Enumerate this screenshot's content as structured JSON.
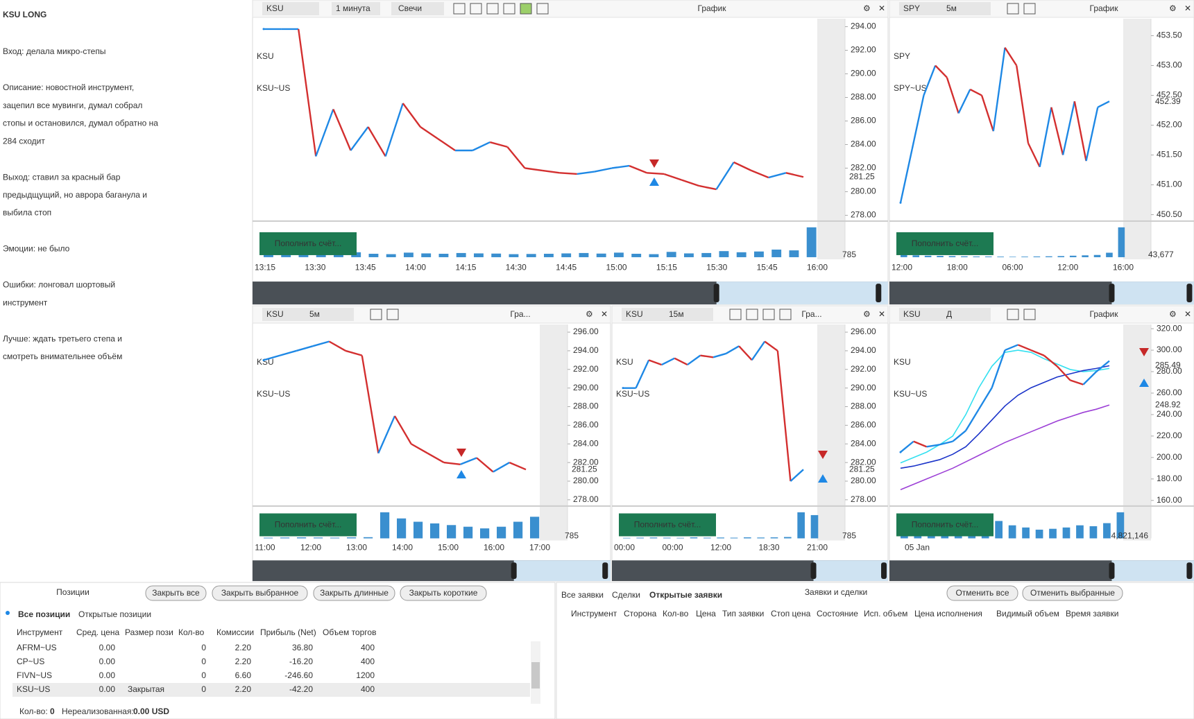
{
  "notes": {
    "title": "KSU LONG",
    "paragraphs": [
      [
        "Вход: делала микро-степы"
      ],
      [
        "Описание: новостной инструмент,",
        "зацепил все мувинги, думал собрал",
        "стопы и остановился, думал обратно на",
        "284 сходит"
      ],
      [
        "Выход: ставил за красный бар",
        "предыдщущий, но аврора баганула и",
        "выбила стоп"
      ],
      [
        "Эмоции: не было"
      ],
      [
        "Ошибки: лонговал шортовый",
        "инструмент"
      ],
      [
        "Лучше: ждать третьего степа и",
        "смотреть внимательнее объём"
      ]
    ]
  },
  "charts": [
    {
      "symbol": "KSU",
      "interval": "1 минута",
      "style": "Свечи",
      "title": "График",
      "watermark": "KSU",
      "watermark_sub": "KSU~US",
      "button": "Пополнить счёт...",
      "ylim": [
        277.8,
        294.5
      ],
      "yticks": [
        {
          "value": 294,
          "label": "294.00"
        },
        {
          "value": 292,
          "label": "292.00"
        },
        {
          "value": 290,
          "label": "290.00"
        },
        {
          "value": 288,
          "label": "288.00"
        },
        {
          "value": 286,
          "label": "286.00"
        },
        {
          "value": 284,
          "label": "284.00"
        },
        {
          "value": 282,
          "label": "282.00"
        },
        {
          "value": 280,
          "label": "280.00"
        },
        {
          "value": 278,
          "label": "278.00"
        }
      ],
      "price_labels": [
        {
          "value": 281.25,
          "label": "281.25",
          "color": "#1e88e5"
        }
      ],
      "volume_label": "785",
      "xticks": [
        "13:15",
        "13:30",
        "13:45",
        "14:00",
        "14:15",
        "14:30",
        "14:45",
        "15:00",
        "15:15",
        "15:30",
        "15:45",
        "16:00"
      ],
      "closes": [
        293.8,
        293.8,
        293.8,
        283,
        287,
        283.5,
        285.5,
        283,
        287.5,
        285.5,
        284.5,
        283.5,
        283.5,
        284.2,
        283.8,
        282,
        281.8,
        281.6,
        281.5,
        281.7,
        282,
        282.2,
        281.6,
        281.5,
        281,
        280.5,
        280.2,
        282.5,
        281.8,
        281.2,
        281.6,
        281.25
      ],
      "volumes": [
        90,
        120,
        150,
        110,
        100,
        130,
        90,
        80,
        120,
        100,
        90,
        110,
        100,
        95,
        80,
        85,
        90,
        100,
        110,
        95,
        120,
        90,
        80,
        140,
        100,
        110,
        160,
        130,
        150,
        200,
        180,
        785
      ]
    },
    {
      "symbol": "SPY",
      "interval": "5м",
      "title": "График",
      "watermark": "SPY",
      "watermark_sub": "SPY~US",
      "button": "Пополнить счёт...",
      "ylim": [
        450.45,
        453.75
      ],
      "yticks": [
        {
          "value": 453.5,
          "label": "453.50"
        },
        {
          "value": 453,
          "label": "453.00"
        },
        {
          "value": 452.5,
          "label": "452.50"
        },
        {
          "value": 452,
          "label": "452.00"
        },
        {
          "value": 451.5,
          "label": "451.50"
        },
        {
          "value": 451,
          "label": "451.00"
        },
        {
          "value": 450.5,
          "label": "450.50"
        }
      ],
      "price_labels": [
        {
          "value": 452.39,
          "label": "452.39",
          "color": "#1e88e5"
        }
      ],
      "volume_label": "43,677",
      "xticks": [
        "12:00",
        "18:00",
        "06:00",
        "12:00",
        "16:00"
      ],
      "closes": [
        450.7,
        451.6,
        452.5,
        453.0,
        452.8,
        452.2,
        452.6,
        452.5,
        451.9,
        453.3,
        453.0,
        451.7,
        451.3,
        452.3,
        451.5,
        452.4,
        451.4,
        452.3,
        452.4
      ],
      "volumes": [
        30,
        25,
        20,
        18,
        15,
        12,
        10,
        10,
        8,
        6,
        8,
        10,
        12,
        15,
        20,
        25,
        30,
        60,
        400
      ]
    },
    {
      "symbol": "KSU",
      "interval": "5м",
      "title": "Гра...",
      "watermark": "KSU",
      "watermark_sub": "KSU~US",
      "button": "Пополнить счёт...",
      "ylim": [
        277.7,
        296.6
      ],
      "yticks": [
        {
          "value": 296,
          "label": "296.00"
        },
        {
          "value": 294,
          "label": "294.00"
        },
        {
          "value": 292,
          "label": "292.00"
        },
        {
          "value": 290,
          "label": "290.00"
        },
        {
          "value": 288,
          "label": "288.00"
        },
        {
          "value": 286,
          "label": "286.00"
        },
        {
          "value": 284,
          "label": "284.00"
        },
        {
          "value": 282,
          "label": "282.00"
        },
        {
          "value": 280,
          "label": "280.00"
        },
        {
          "value": 278,
          "label": "278.00"
        }
      ],
      "price_labels": [
        {
          "value": 281.25,
          "label": "281.25",
          "color": "#1e88e5"
        }
      ],
      "volume_label": "785",
      "xticks": [
        "11:00",
        "12:00",
        "13:00",
        "14:00",
        "15:00",
        "16:00",
        "17:00"
      ],
      "closes": [
        293,
        293.5,
        294,
        294.5,
        295,
        294,
        293.5,
        283,
        287,
        284,
        283,
        282,
        281.8,
        282.5,
        281,
        282,
        281.25
      ],
      "volumes": [
        20,
        25,
        30,
        25,
        20,
        30,
        35,
        785,
        600,
        500,
        450,
        400,
        350,
        300,
        350,
        500,
        650
      ]
    },
    {
      "symbol": "KSU",
      "interval": "15м",
      "title": "Гра...",
      "watermark": "KSU",
      "watermark_sub": "KSU~US",
      "button": "Пополнить счёт...",
      "ylim": [
        277.7,
        296.6
      ],
      "yticks": [
        {
          "value": 296,
          "label": "296.00"
        },
        {
          "value": 294,
          "label": "294.00"
        },
        {
          "value": 292,
          "label": "292.00"
        },
        {
          "value": 290,
          "label": "290.00"
        },
        {
          "value": 288,
          "label": "288.00"
        },
        {
          "value": 286,
          "label": "286.00"
        },
        {
          "value": 284,
          "label": "284.00"
        },
        {
          "value": 282,
          "label": "282.00"
        },
        {
          "value": 280,
          "label": "280.00"
        },
        {
          "value": 278,
          "label": "278.00"
        }
      ],
      "price_labels": [
        {
          "value": 281.25,
          "label": "281.25",
          "color": "#1e88e5"
        }
      ],
      "volume_label": "785",
      "xticks": [
        "00:00",
        "00:00",
        "12:00",
        "18:30",
        "21:00"
      ],
      "closes": [
        290,
        290,
        293,
        292.5,
        293.2,
        292.5,
        293.5,
        293.3,
        293.7,
        294.5,
        293,
        295,
        294,
        280,
        281.25
      ],
      "volumes": [
        15,
        20,
        25,
        20,
        15,
        30,
        20,
        25,
        20,
        30,
        25,
        30,
        40,
        785,
        700
      ]
    },
    {
      "symbol": "KSU",
      "interval": "Д",
      "title": "График",
      "watermark": "KSU",
      "watermark_sub": "KSU~US",
      "button": "Пополнить счёт...",
      "ylim": [
        158,
        322
      ],
      "yticks": [
        {
          "value": 320,
          "label": "320.00"
        },
        {
          "value": 300,
          "label": "300.00"
        },
        {
          "value": 280,
          "label": "280.00"
        },
        {
          "value": 260,
          "label": "260.00"
        },
        {
          "value": 240,
          "label": "240.00"
        },
        {
          "value": 220,
          "label": "220.00"
        },
        {
          "value": 200,
          "label": "200.00"
        },
        {
          "value": 180,
          "label": "180.00"
        },
        {
          "value": 160,
          "label": "160.00"
        }
      ],
      "price_labels": [
        {
          "value": 285.49,
          "label": "285.49",
          "color": "#1a33c9"
        },
        {
          "value": 248.92,
          "label": "248.92",
          "color": "#9c3fd6"
        }
      ],
      "volume_label": "4,821,146",
      "xticks": [
        "05 Jan"
      ],
      "closes": [
        205,
        215,
        210,
        212,
        215,
        225,
        245,
        265,
        300,
        305,
        300,
        295,
        285,
        272,
        268,
        280,
        290
      ],
      "volumes": [
        20,
        25,
        18,
        22,
        30,
        25,
        35,
        40,
        30,
        25,
        20,
        22,
        25,
        30,
        28,
        35,
        60
      ],
      "ma": [
        {
          "color": "#33e0f0",
          "values": [
            195,
            200,
            205,
            212,
            220,
            240,
            265,
            285,
            298,
            300,
            298,
            292,
            287,
            282,
            280,
            281,
            283
          ]
        },
        {
          "color": "#1a33c9",
          "values": [
            190,
            192,
            195,
            198,
            203,
            210,
            222,
            235,
            248,
            258,
            265,
            270,
            275,
            278,
            281,
            283,
            285.49
          ]
        },
        {
          "color": "#9c3fd6",
          "values": [
            170,
            175,
            180,
            185,
            190,
            196,
            202,
            208,
            214,
            219,
            224,
            229,
            234,
            238,
            242,
            245,
            248.92
          ]
        }
      ]
    }
  ],
  "positions": {
    "title": "Позиции",
    "buttons": [
      "Закрыть все",
      "Закрыть выбранное",
      "Закрыть длинные",
      "Закрыть короткие"
    ],
    "tabs": [
      "Все позиции",
      "Открытые позиции"
    ],
    "columns": [
      "Инструмент",
      "Сред. цена",
      "Размер пози",
      "Кол-во",
      "Комиссии",
      "Прибыль (Net)",
      "Объем торгов"
    ],
    "rows": [
      {
        "instrument": "AFRM~US",
        "avg_price": "0.00",
        "qty": "0",
        "commission": "2.20",
        "profit": "36.80",
        "volume": "400"
      },
      {
        "instrument": "CP~US",
        "avg_price": "0.00",
        "qty": "0",
        "commission": "2.20",
        "profit": "-16.20",
        "volume": "400"
      },
      {
        "instrument": "FIVN~US",
        "avg_price": "0.00",
        "qty": "0",
        "commission": "6.60",
        "profit": "-246.60",
        "volume": "1200"
      },
      {
        "instrument": "KSU~US",
        "avg_price": "0.00",
        "size": "Закрытая",
        "qty": "0",
        "commission": "2.20",
        "profit": "-42.20",
        "volume": "400"
      }
    ],
    "footer": {
      "qty_label": "Кол-во:",
      "qty": "0",
      "unrealized_label": "Нереализованная:",
      "unrealized": "0.00 USD"
    }
  },
  "orders": {
    "title": "Заявки и сделки",
    "tabs": [
      "Все заявки",
      "Сделки",
      "Открытые заявки"
    ],
    "buttons": [
      "Отменить все",
      "Отменить выбранные"
    ],
    "columns": [
      "Инструмент",
      "Сторона",
      "Кол-во",
      "Цена",
      "Тип заявки",
      "Стоп цена",
      "Состояние",
      "Исп. объем",
      "Цена исполнения",
      "Видимый объем",
      "Время заявки"
    ]
  }
}
